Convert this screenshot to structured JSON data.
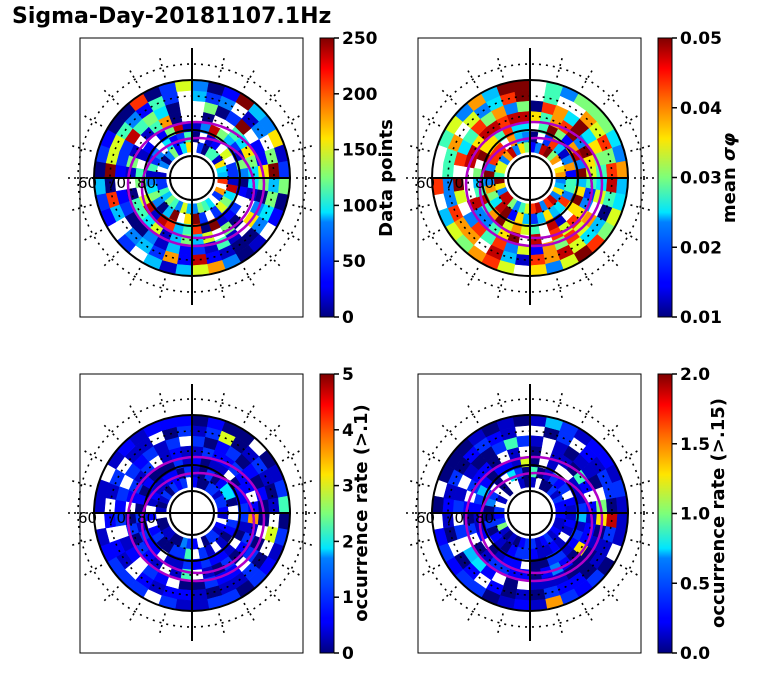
{
  "title": "Sigma-Day-20181107.1Hz",
  "polar_grid": {
    "lat_labels": [
      "60",
      "70",
      "80"
    ]
  },
  "chart_data": [
    {
      "type": "heatmap",
      "projection": "polar (magnetic latitude / MLT)",
      "colormap": "jet",
      "colorbar": {
        "label": "Data points",
        "label_math": "",
        "range": [
          0,
          250
        ],
        "ticks": [
          "0",
          "50",
          "100",
          "150",
          "200",
          "250"
        ]
      },
      "seed": 7,
      "density": 0.84,
      "weights": [
        0.45,
        0.4,
        0.15
      ]
    },
    {
      "type": "heatmap",
      "projection": "polar (magnetic latitude / MLT)",
      "colormap": "jet",
      "colorbar": {
        "label": "mean ",
        "label_math": "σφ",
        "range": [
          0.01,
          0.05
        ],
        "ticks": [
          "0.01",
          "0.02",
          "0.03",
          "0.04",
          "0.05"
        ]
      },
      "seed": 21,
      "density": 0.9,
      "weights": [
        0.1,
        0.35,
        0.55
      ]
    },
    {
      "type": "heatmap",
      "projection": "polar (magnetic latitude / MLT)",
      "colormap": "jet",
      "colorbar": {
        "label": "occurrence rate (>.1)",
        "label_math": "",
        "range": [
          0,
          5
        ],
        "ticks": [
          "0",
          "1",
          "2",
          "3",
          "4",
          "5"
        ]
      },
      "seed": 33,
      "density": 0.88,
      "weights": [
        0.92,
        0.06,
        0.02
      ]
    },
    {
      "type": "heatmap",
      "projection": "polar (magnetic latitude / MLT)",
      "colormap": "jet",
      "colorbar": {
        "label": "occurrence rate (>.15)",
        "label_math": "",
        "range": [
          0.0,
          2.0
        ],
        "ticks": [
          "0.0",
          "0.5",
          "1.0",
          "1.5",
          "2.0"
        ]
      },
      "seed": 45,
      "density": 0.88,
      "weights": [
        0.94,
        0.04,
        0.02
      ]
    }
  ]
}
